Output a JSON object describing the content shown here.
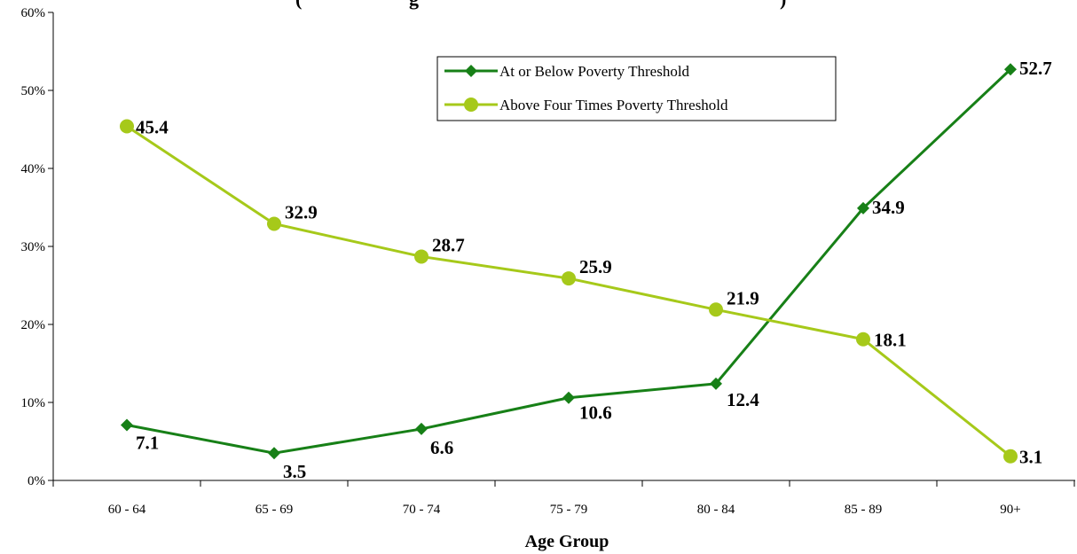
{
  "chart_data": {
    "type": "line",
    "title_fragments": [
      "(",
      "g",
      ")"
    ],
    "xlabel": "Age Group",
    "ylabel": "",
    "categories": [
      "60 - 64",
      "65 - 69",
      "70 - 74",
      "75 - 79",
      "80 - 84",
      "85 - 89",
      "90+"
    ],
    "ylim": [
      0,
      60
    ],
    "yticks": [
      0,
      10,
      20,
      30,
      40,
      50,
      60
    ],
    "ytick_labels": [
      "0%",
      "10%",
      "20%",
      "30%",
      "40%",
      "50%",
      "60%"
    ],
    "grid": false,
    "legend_position": "top-right",
    "series": [
      {
        "name": "At or Below Poverty Threshold",
        "marker": "diamond",
        "color": "#178017",
        "values": [
          7.1,
          3.5,
          6.6,
          10.6,
          12.4,
          34.9,
          52.7
        ],
        "labels": [
          "7.1",
          "3.5",
          "6.6",
          "10.6",
          "12.4",
          "34.9",
          "52.7"
        ]
      },
      {
        "name": "Above Four Times Poverty Threshold",
        "marker": "circle",
        "color": "#a6c91a",
        "values": [
          45.4,
          32.9,
          28.7,
          25.9,
          21.9,
          18.1,
          3.1
        ],
        "labels": [
          "45.4",
          "32.9",
          "28.7",
          "25.9",
          "21.9",
          "18.1",
          "3.1"
        ]
      }
    ]
  }
}
